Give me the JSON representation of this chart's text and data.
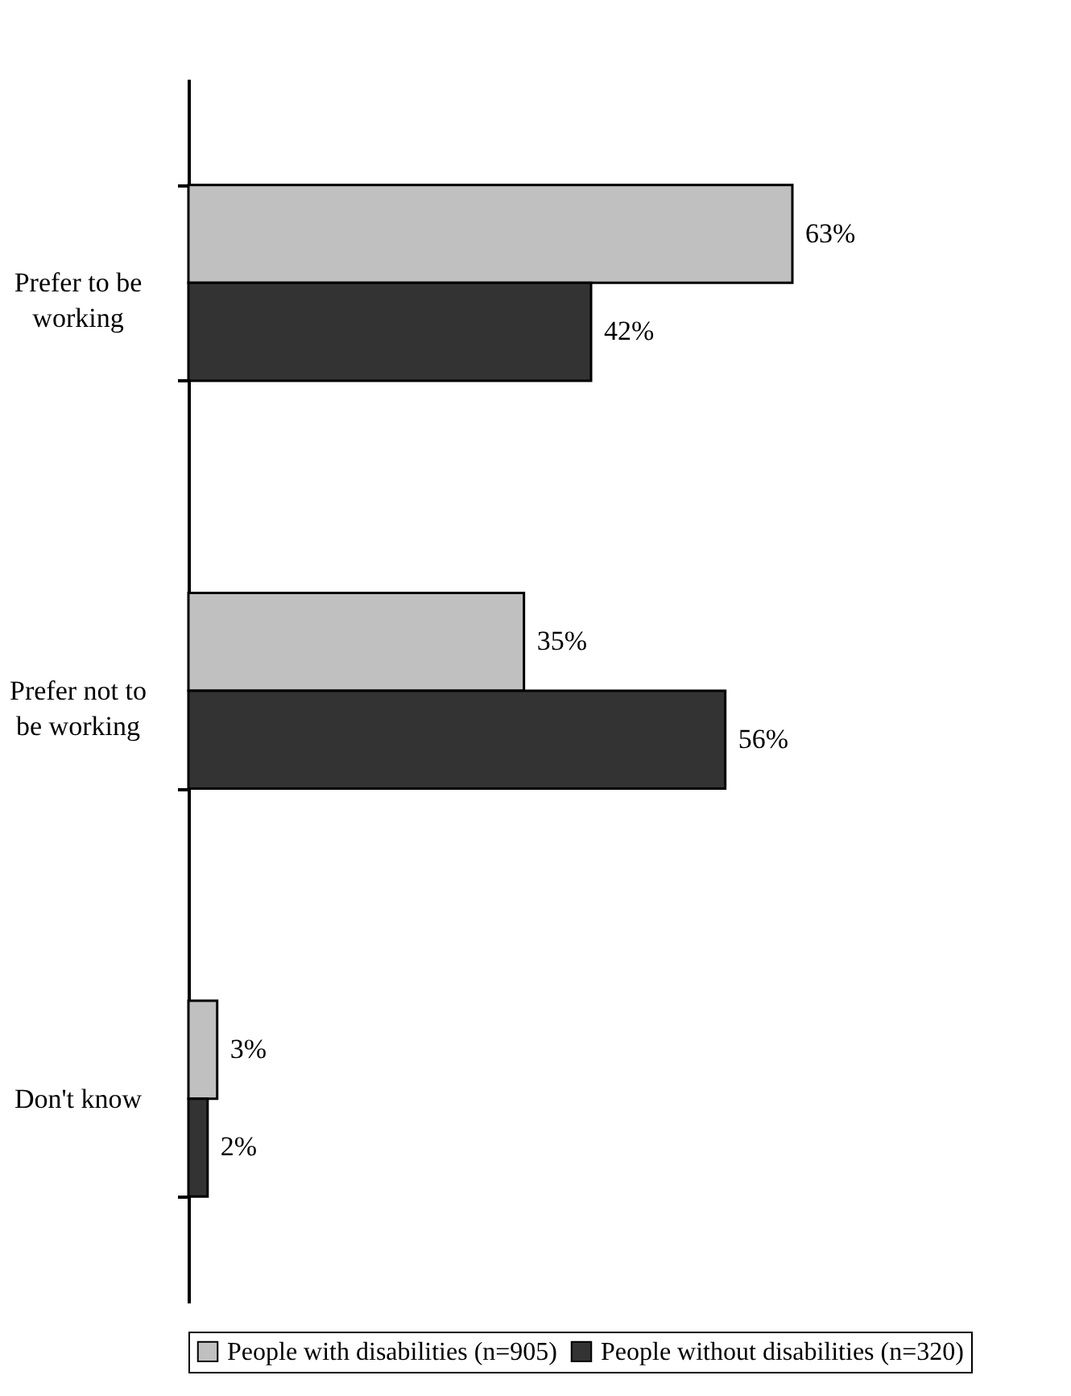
{
  "chart_data": {
    "type": "bar",
    "orientation": "horizontal",
    "categories": [
      "Prefer to be working",
      "Prefer not to be working",
      "Don't know"
    ],
    "series": [
      {
        "name": "People with disabilities (n=905)",
        "color": "#c0c0c0",
        "values": [
          63,
          35,
          3
        ],
        "value_labels": [
          "63%",
          "35%",
          "3%"
        ]
      },
      {
        "name": "People without disabilities (n=320)",
        "color": "#333333",
        "values": [
          42,
          56,
          2
        ],
        "value_labels": [
          "42%",
          "56%",
          "2%"
        ]
      }
    ],
    "tick_labels": "y",
    "legend": "bottom",
    "grid": false
  }
}
